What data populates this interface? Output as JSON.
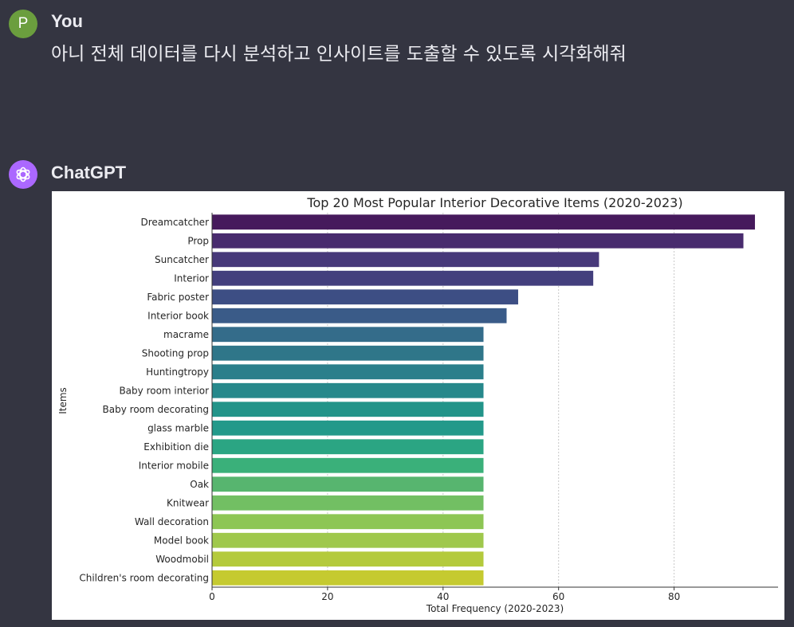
{
  "user_message": {
    "avatar_letter": "P",
    "author": "You",
    "text": "아니 전체 데이터를 다시 분석하고 인사이트를 도출할 수 있도록 시각화해줘"
  },
  "assistant_message": {
    "author": "ChatGPT",
    "avatar_icon": "openai-logo-icon"
  },
  "chart_data": {
    "type": "bar",
    "orientation": "horizontal",
    "title": "Top 20 Most Popular Interior Decorative Items (2020-2023)",
    "xlabel": "Total Frequency (2020-2023)",
    "ylabel": "Items",
    "xlim": [
      0,
      98
    ],
    "xticks": [
      0,
      20,
      40,
      60,
      80
    ],
    "grid": "vertical dashed",
    "palette": "viridis",
    "categories": [
      "Dreamcatcher",
      "Prop",
      "Suncatcher",
      "Interior",
      "Fabric poster",
      "Interior book",
      "macrame",
      "Shooting prop",
      "Huntingtropy",
      "Baby room interior",
      "Baby room decorating",
      "glass marble",
      "Exhibition die",
      "Interior mobile",
      "Oak",
      "Knitwear",
      "Wall decoration",
      "Model book",
      "Woodmobil",
      "Children's room decorating"
    ],
    "values": [
      94,
      92,
      67,
      66,
      53,
      51,
      47,
      47,
      47,
      47,
      47,
      47,
      47,
      47,
      47,
      47,
      47,
      47,
      47,
      47
    ],
    "colors": [
      "#461a5c",
      "#482b6e",
      "#47397a",
      "#433f7d",
      "#3d4e84",
      "#3a5b88",
      "#346c8a",
      "#2f7689",
      "#2b7f8b",
      "#26888b",
      "#229489",
      "#23998a",
      "#2ba583",
      "#3ab07a",
      "#57b56f",
      "#72bf63",
      "#8dc654",
      "#9fc84c",
      "#b4ca3c",
      "#c5ca30"
    ]
  }
}
